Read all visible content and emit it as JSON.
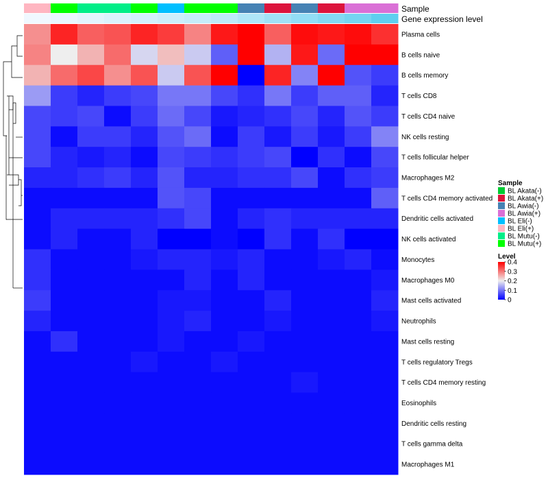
{
  "chart_data": {
    "type": "heatmap",
    "title": "",
    "annotation_labels": [
      "Sample",
      "Gene expression level"
    ],
    "rows": [
      "Plasma cells",
      "B cells naive",
      "B cells memory",
      "T cells CD8",
      "T cells CD4 naive",
      "NK cells resting",
      "T cells follicular helper",
      "Macrophages M2",
      "T cells CD4 memory activated",
      "Dendritic cells activated",
      "NK cells activated",
      "Monocytes",
      "Macrophages M0",
      "Mast cells activated",
      "Neutrophils",
      "Mast cells resting",
      "T cells regulatory  Tregs",
      "T cells CD4 memory resting",
      "Eosinophils",
      "Dendritic cells resting",
      "T cells gamma delta",
      "Macrophages M1"
    ],
    "columns": [
      {
        "sample": "BL Eli(+)",
        "expression": 0.0
      },
      {
        "sample": "BL Mutu(+)",
        "expression": 0.05
      },
      {
        "sample": "BL Mutu(-)",
        "expression": 0.1
      },
      {
        "sample": "BL Mutu(-)",
        "expression": 0.15
      },
      {
        "sample": "BL Mutu(+)",
        "expression": 0.2
      },
      {
        "sample": "BL Eli(-)",
        "expression": 0.25
      },
      {
        "sample": "BL Mutu(+)",
        "expression": 0.3
      },
      {
        "sample": "BL Mutu(+)",
        "expression": 0.35
      },
      {
        "sample": "BL Awia(-)",
        "expression": 0.45
      },
      {
        "sample": "BL Akata(+)",
        "expression": 0.55
      },
      {
        "sample": "BL Awia(-)",
        "expression": 0.65
      },
      {
        "sample": "BL Akata(+)",
        "expression": 0.75
      },
      {
        "sample": "BL Awia(+)",
        "expression": 0.85
      },
      {
        "sample": "BL Awia(+)",
        "expression": 1.0
      }
    ],
    "values": [
      [
        0.28,
        0.37,
        0.32,
        0.33,
        0.37,
        0.35,
        0.29,
        0.38,
        0.4,
        0.32,
        0.39,
        0.38,
        0.39,
        0.36
      ],
      [
        0.29,
        0.2,
        0.25,
        0.31,
        0.18,
        0.24,
        0.17,
        0.08,
        0.4,
        0.15,
        0.38,
        0.09,
        0.4,
        0.4
      ],
      [
        0.25,
        0.31,
        0.34,
        0.28,
        0.33,
        0.17,
        0.33,
        0.4,
        0.0,
        0.37,
        0.11,
        0.4,
        0.07,
        0.05
      ],
      [
        0.13,
        0.05,
        0.03,
        0.05,
        0.06,
        0.1,
        0.1,
        0.06,
        0.04,
        0.1,
        0.05,
        0.08,
        0.08,
        0.03
      ],
      [
        0.06,
        0.05,
        0.06,
        0.01,
        0.05,
        0.09,
        0.06,
        0.02,
        0.03,
        0.04,
        0.06,
        0.03,
        0.07,
        0.05
      ],
      [
        0.06,
        0.01,
        0.05,
        0.05,
        0.03,
        0.07,
        0.09,
        0.01,
        0.05,
        0.02,
        0.05,
        0.02,
        0.05,
        0.11
      ],
      [
        0.06,
        0.03,
        0.02,
        0.03,
        0.01,
        0.06,
        0.05,
        0.04,
        0.05,
        0.06,
        0.0,
        0.04,
        0.01,
        0.06
      ],
      [
        0.03,
        0.03,
        0.04,
        0.05,
        0.03,
        0.07,
        0.03,
        0.03,
        0.04,
        0.04,
        0.06,
        0.01,
        0.04,
        0.05
      ],
      [
        0.01,
        0.01,
        0.01,
        0.01,
        0.01,
        0.07,
        0.06,
        0.01,
        0.01,
        0.01,
        0.01,
        0.01,
        0.01,
        0.08
      ],
      [
        0.01,
        0.03,
        0.03,
        0.03,
        0.03,
        0.04,
        0.06,
        0.01,
        0.03,
        0.04,
        0.03,
        0.03,
        0.03,
        0.03
      ],
      [
        0.01,
        0.03,
        0.01,
        0.01,
        0.03,
        0.0,
        0.0,
        0.01,
        0.0,
        0.04,
        0.01,
        0.04,
        0.0,
        0.0
      ],
      [
        0.04,
        0.01,
        0.01,
        0.01,
        0.02,
        0.03,
        0.03,
        0.02,
        0.03,
        0.01,
        0.01,
        0.02,
        0.03,
        0.01
      ],
      [
        0.04,
        0.01,
        0.01,
        0.01,
        0.01,
        0.01,
        0.03,
        0.01,
        0.03,
        0.01,
        0.01,
        0.01,
        0.01,
        0.02
      ],
      [
        0.05,
        0.01,
        0.01,
        0.01,
        0.01,
        0.02,
        0.02,
        0.01,
        0.01,
        0.03,
        0.01,
        0.01,
        0.01,
        0.03
      ],
      [
        0.03,
        0.01,
        0.01,
        0.01,
        0.01,
        0.02,
        0.03,
        0.01,
        0.01,
        0.02,
        0.01,
        0.01,
        0.01,
        0.02
      ],
      [
        0.01,
        0.04,
        0.01,
        0.01,
        0.01,
        0.02,
        0.01,
        0.01,
        0.02,
        0.01,
        0.01,
        0.01,
        0.01,
        0.01
      ],
      [
        0.01,
        0.01,
        0.01,
        0.01,
        0.02,
        0.01,
        0.01,
        0.02,
        0.01,
        0.01,
        0.01,
        0.01,
        0.01,
        0.01
      ],
      [
        0.01,
        0.01,
        0.01,
        0.01,
        0.01,
        0.01,
        0.01,
        0.01,
        0.01,
        0.01,
        0.02,
        0.01,
        0.01,
        0.01
      ],
      [
        0.01,
        0.01,
        0.01,
        0.01,
        0.01,
        0.01,
        0.01,
        0.01,
        0.01,
        0.01,
        0.01,
        0.01,
        0.01,
        0.01
      ],
      [
        0.01,
        0.01,
        0.01,
        0.01,
        0.01,
        0.01,
        0.01,
        0.01,
        0.01,
        0.01,
        0.01,
        0.01,
        0.01,
        0.01
      ],
      [
        0.01,
        0.01,
        0.01,
        0.01,
        0.01,
        0.01,
        0.01,
        0.01,
        0.01,
        0.01,
        0.01,
        0.01,
        0.01,
        0.01
      ],
      [
        0.01,
        0.01,
        0.01,
        0.01,
        0.01,
        0.01,
        0.01,
        0.01,
        0.01,
        0.01,
        0.01,
        0.01,
        0.01,
        0.01
      ]
    ],
    "color_scale": {
      "domain": [
        0,
        0.2,
        0.4
      ],
      "colors": [
        "#0000ff",
        "#eeeeee",
        "#ff0000"
      ]
    },
    "legend_sample": {
      "title": "Sample",
      "position": "right",
      "items": [
        {
          "label": "BL Akata(-)",
          "color": "#00cc33"
        },
        {
          "label": "BL Akata(+)",
          "color": "#dc143c"
        },
        {
          "label": "BL Awia(-)",
          "color": "#4682b4"
        },
        {
          "label": "BL Awia(+)",
          "color": "#da70d6"
        },
        {
          "label": "BL Eli(-)",
          "color": "#00bfff"
        },
        {
          "label": "BL Eli(+)",
          "color": "#ffb6c1"
        },
        {
          "label": "BL Mutu(-)",
          "color": "#00ee88"
        },
        {
          "label": "BL Mutu(+)",
          "color": "#00ff00"
        }
      ]
    },
    "legend_level": {
      "title": "Level",
      "position": "right",
      "ticks": [
        "0.4",
        "0.3",
        "0.2",
        "0.1",
        "0"
      ],
      "tick_values": [
        0.4,
        0.3,
        0.2,
        0.1,
        0
      ]
    },
    "expression_colors": [
      "#f0f8ff",
      "#5fcfef"
    ]
  }
}
